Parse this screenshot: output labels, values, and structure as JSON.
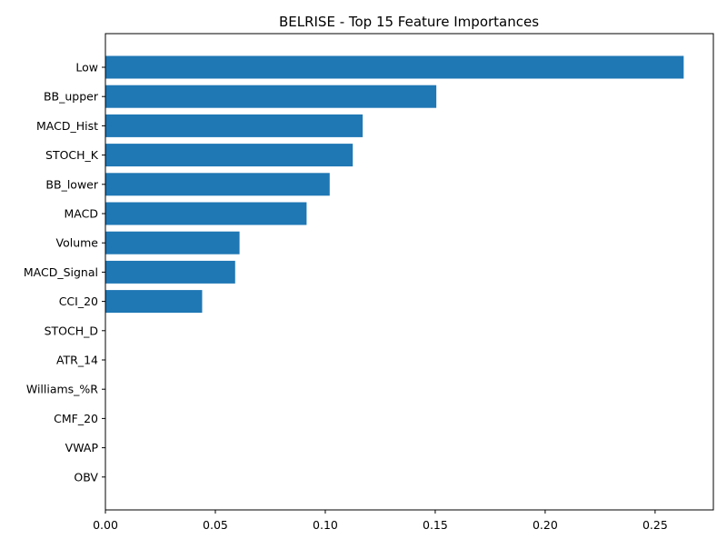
{
  "chart_data": {
    "type": "bar",
    "orientation": "horizontal",
    "title": "BELRISE - Top 15 Feature Importances",
    "xlabel": "",
    "ylabel": "",
    "categories": [
      "Low",
      "BB_upper",
      "MACD_Hist",
      "STOCH_K",
      "BB_lower",
      "MACD",
      "Volume",
      "MACD_Signal",
      "CCI_20",
      "STOCH_D",
      "ATR_14",
      "Williams_%R",
      "CMF_20",
      "VWAP",
      "OBV"
    ],
    "values": [
      0.263,
      0.1505,
      0.117,
      0.1125,
      0.102,
      0.0915,
      0.061,
      0.059,
      0.044,
      0,
      0,
      0,
      0,
      0,
      0
    ],
    "xlim": [
      0,
      0.2765
    ],
    "xticks": [
      0.0,
      0.05,
      0.1,
      0.15,
      0.2,
      0.25
    ],
    "xtick_labels": [
      "0.00",
      "0.05",
      "0.10",
      "0.15",
      "0.20",
      "0.25"
    ],
    "grid": false,
    "legend": "none",
    "bar_color": "#1f77b4"
  }
}
